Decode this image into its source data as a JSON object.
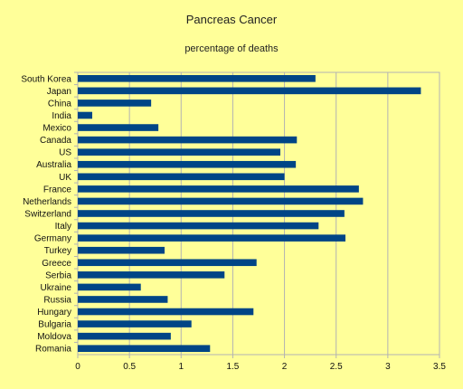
{
  "chart_data": {
    "type": "bar",
    "orientation": "horizontal",
    "title": "Pancreas Cancer",
    "subtitle": "percentage of deaths",
    "xlabel": "",
    "ylabel": "",
    "xlim": [
      0,
      3.5
    ],
    "xticks": [
      0,
      0.5,
      1,
      1.5,
      2,
      2.5,
      3,
      3.5
    ],
    "xtick_labels": [
      "0",
      "0.5",
      "1",
      "1.5",
      "2",
      "2.5",
      "3",
      "3.5"
    ],
    "grid": "vertical",
    "legend": "none",
    "bar_color": "#004586",
    "categories": [
      "South Korea",
      "Japan",
      "China",
      "India",
      "Mexico",
      "Canada",
      "US",
      "Australia",
      "UK",
      "France",
      "Netherlands",
      "Switzerland",
      "Italy",
      "Germany",
      "Turkey",
      "Greece",
      "Serbia",
      "Ukraine",
      "Russia",
      "Hungary",
      "Bulgaria",
      "Moldova",
      "Romania"
    ],
    "values": [
      2.3,
      3.32,
      0.71,
      0.14,
      0.78,
      2.12,
      1.96,
      2.11,
      2.0,
      2.72,
      2.76,
      2.58,
      2.33,
      2.59,
      0.84,
      1.73,
      1.42,
      0.61,
      0.87,
      1.7,
      1.1,
      0.9,
      1.28
    ]
  }
}
